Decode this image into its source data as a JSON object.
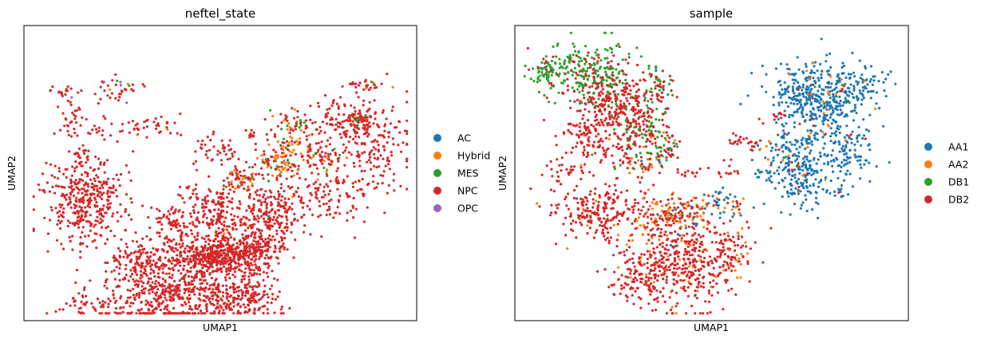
{
  "figure": {
    "background": "#ffffff"
  },
  "chart_data": [
    {
      "type": "scatter",
      "title": "neftel_state",
      "xlabel": "UMAP1",
      "ylabel": "UMAP2",
      "grid": false,
      "ticks": false,
      "legend_position": "right",
      "series": [
        {
          "name": "AC",
          "color": "#1f77b4"
        },
        {
          "name": "Hybrid",
          "color": "#ff7f0e"
        },
        {
          "name": "MES",
          "color": "#2ca02c"
        },
        {
          "name": "NPC",
          "color": "#d62728"
        },
        {
          "name": "OPC",
          "color": "#9467bd"
        }
      ],
      "clusters": [
        {
          "cx": 0.5,
          "cy": 0.78,
          "sx": 0.045,
          "sy": 0.025,
          "n": 280,
          "mix": [
            0,
            0,
            0,
            1,
            0
          ]
        },
        {
          "cx": 0.6,
          "cy": 0.72,
          "sx": 0.04,
          "sy": 0.04,
          "n": 160,
          "mix": [
            0,
            0.05,
            0,
            0.95,
            0
          ]
        },
        {
          "cx": 0.63,
          "cy": 0.62,
          "sx": 0.04,
          "sy": 0.04,
          "n": 140,
          "mix": [
            0,
            0.05,
            0,
            0.9,
            0.05
          ]
        },
        {
          "cx": 0.5,
          "cy": 0.65,
          "sx": 0.008,
          "sy": 0.05,
          "n": 40,
          "mix": [
            0,
            0,
            0,
            1,
            0
          ]
        },
        {
          "cx": 0.55,
          "cy": 0.52,
          "sx": 0.02,
          "sy": 0.03,
          "n": 70,
          "mix": [
            0,
            0.25,
            0.05,
            0.7,
            0
          ]
        },
        {
          "cx": 0.65,
          "cy": 0.47,
          "sx": 0.025,
          "sy": 0.03,
          "n": 90,
          "mix": [
            0,
            0.4,
            0.1,
            0.45,
            0.05
          ]
        },
        {
          "cx": 0.68,
          "cy": 0.4,
          "sx": 0.03,
          "sy": 0.02,
          "n": 40,
          "mix": [
            0,
            0.3,
            0.1,
            0.6,
            0
          ]
        },
        {
          "cx": 0.69,
          "cy": 0.33,
          "sx": 0.03,
          "sy": 0.02,
          "n": 40,
          "mix": [
            0,
            0.2,
            0.2,
            0.6,
            0
          ]
        },
        {
          "cx": 0.76,
          "cy": 0.45,
          "sx": 0.025,
          "sy": 0.03,
          "n": 50,
          "mix": [
            0,
            0.15,
            0.15,
            0.7,
            0
          ]
        },
        {
          "cx": 0.86,
          "cy": 0.32,
          "sx": 0.014,
          "sy": 0.014,
          "n": 35,
          "mix": [
            0,
            0.05,
            0.1,
            0.85,
            0
          ]
        },
        {
          "cx": 0.86,
          "cy": 0.2,
          "sx": 0.03,
          "sy": 0.01,
          "n": 25,
          "mix": [
            0,
            0.1,
            0.1,
            0.8,
            0
          ]
        },
        {
          "cx": 0.58,
          "cy": 0.37,
          "sx": 0.01,
          "sy": 0.01,
          "n": 10,
          "mix": [
            0,
            0,
            0,
            1,
            0
          ]
        },
        {
          "cx": 0.52,
          "cy": 0.42,
          "sx": 0.01,
          "sy": 0.02,
          "n": 12,
          "mix": [
            0,
            0,
            0,
            1,
            0
          ]
        },
        {
          "cx": 0.12,
          "cy": 0.32,
          "sx": 0.02,
          "sy": 0.03,
          "n": 30,
          "mix": [
            0,
            0,
            0,
            1,
            0
          ]
        },
        {
          "cx": 0.22,
          "cy": 0.35,
          "sx": 0.03,
          "sy": 0.025,
          "n": 20,
          "mix": [
            0,
            0,
            0,
            1,
            0
          ]
        },
        {
          "cx": 0.1,
          "cy": 0.22,
          "sx": 0.02,
          "sy": 0.01,
          "n": 15,
          "mix": [
            0,
            0,
            0,
            1,
            0
          ]
        },
        {
          "cx": 0.23,
          "cy": 0.22,
          "sx": 0.04,
          "sy": 0.02,
          "n": 40,
          "mix": [
            0,
            0.05,
            0.05,
            0.8,
            0.1
          ]
        },
        {
          "cx": 0.32,
          "cy": 0.34,
          "sx": 0.05,
          "sy": 0.02,
          "n": 35,
          "mix": [
            0,
            0.05,
            0,
            0.9,
            0.05
          ]
        },
        {
          "cx": 0.15,
          "cy": 0.45,
          "sx": 0.02,
          "sy": 0.03,
          "n": 25,
          "mix": [
            0,
            0,
            0,
            1,
            0
          ]
        },
        {
          "cx": 0.48,
          "cy": 0.42,
          "sx": 0.03,
          "sy": 0.03,
          "n": 30,
          "mix": [
            0,
            0,
            0,
            1,
            0
          ]
        },
        {
          "cx": 0.15,
          "cy": 0.6,
          "sx": 0.05,
          "sy": 0.07,
          "n": 360,
          "mix": [
            0,
            0,
            0,
            1,
            0
          ]
        },
        {
          "cx": 0.45,
          "cy": 0.78,
          "sx": 0.04,
          "sy": 0.05,
          "n": 130,
          "mix": [
            0,
            0,
            0,
            1,
            0
          ]
        },
        {
          "cx": 0.38,
          "cy": 0.92,
          "sx": 0.09,
          "sy": 0.06,
          "n": 420,
          "mix": [
            0,
            0,
            0,
            1,
            0
          ]
        },
        {
          "cx": 0.32,
          "cy": 0.8,
          "sx": 0.06,
          "sy": 0.05,
          "n": 220,
          "mix": [
            0,
            0,
            0,
            1,
            0
          ]
        },
        {
          "cx": 0.48,
          "cy": 0.62,
          "sx": 0.05,
          "sy": 0.06,
          "n": 160,
          "mix": [
            0,
            0,
            0,
            1,
            0
          ]
        },
        {
          "cx": 0.38,
          "cy": 0.67,
          "sx": 0.03,
          "sy": 0.03,
          "n": 60,
          "mix": [
            0,
            0,
            0,
            1,
            0
          ]
        },
        {
          "cx": 0.58,
          "cy": 0.8,
          "sx": 0.03,
          "sy": 0.06,
          "n": 120,
          "mix": [
            0,
            0,
            0,
            1,
            0
          ]
        },
        {
          "cx": 0.55,
          "cy": 0.93,
          "sx": 0.05,
          "sy": 0.03,
          "n": 150,
          "mix": [
            0,
            0,
            0,
            1,
            0
          ]
        },
        {
          "cx": 0.77,
          "cy": 0.58,
          "sx": 0.06,
          "sy": 0.06,
          "n": 130,
          "mix": [
            0,
            0,
            0,
            1,
            0
          ]
        },
        {
          "cx": 0.82,
          "cy": 0.33,
          "sx": 0.06,
          "sy": 0.05,
          "n": 160,
          "mix": [
            0,
            0,
            0,
            1,
            0
          ]
        },
        {
          "cx": 0.9,
          "cy": 0.42,
          "sx": 0.05,
          "sy": 0.06,
          "n": 120,
          "mix": [
            0,
            0,
            0,
            1,
            0
          ]
        },
        {
          "cx": 0.18,
          "cy": 0.95,
          "sx": 0.05,
          "sy": 0.03,
          "n": 60,
          "mix": [
            0,
            0,
            0,
            1,
            0
          ]
        }
      ]
    },
    {
      "type": "scatter",
      "title": "sample",
      "xlabel": "UMAP1",
      "ylabel": "UMAP2",
      "grid": false,
      "ticks": false,
      "legend_position": "right",
      "series": [
        {
          "name": "AA1",
          "color": "#1f77b4"
        },
        {
          "name": "AA2",
          "color": "#ff7f0e"
        },
        {
          "name": "DB1",
          "color": "#2ca02c"
        },
        {
          "name": "DB2",
          "color": "#d62728"
        }
      ],
      "clusters": [
        {
          "cx": 0.18,
          "cy": 0.16,
          "sx": 0.06,
          "sy": 0.05,
          "n": 240,
          "mix": [
            0,
            0,
            0.8,
            0.2
          ]
        },
        {
          "cx": 0.08,
          "cy": 0.16,
          "sx": 0.02,
          "sy": 0.02,
          "n": 50,
          "mix": [
            0,
            0,
            0.9,
            0.1
          ]
        },
        {
          "cx": 0.25,
          "cy": 0.27,
          "sx": 0.05,
          "sy": 0.07,
          "n": 330,
          "mix": [
            0,
            0,
            0.05,
            0.95
          ]
        },
        {
          "cx": 0.33,
          "cy": 0.35,
          "sx": 0.03,
          "sy": 0.04,
          "n": 90,
          "mix": [
            0,
            0,
            0.3,
            0.7
          ]
        },
        {
          "cx": 0.36,
          "cy": 0.22,
          "sx": 0.02,
          "sy": 0.04,
          "n": 60,
          "mix": [
            0.05,
            0,
            0.5,
            0.45
          ]
        },
        {
          "cx": 0.38,
          "cy": 0.42,
          "sx": 0.02,
          "sy": 0.03,
          "n": 50,
          "mix": [
            0.05,
            0.1,
            0.5,
            0.35
          ]
        },
        {
          "cx": 0.16,
          "cy": 0.36,
          "sx": 0.03,
          "sy": 0.02,
          "n": 40,
          "mix": [
            0,
            0,
            0,
            1
          ]
        },
        {
          "cx": 0.2,
          "cy": 0.41,
          "sx": 0.03,
          "sy": 0.03,
          "n": 45,
          "mix": [
            0,
            0.05,
            0.05,
            0.9
          ]
        },
        {
          "cx": 0.31,
          "cy": 0.46,
          "sx": 0.03,
          "sy": 0.03,
          "n": 60,
          "mix": [
            0.05,
            0.1,
            0.15,
            0.7
          ]
        },
        {
          "cx": 0.12,
          "cy": 0.5,
          "sx": 0.03,
          "sy": 0.03,
          "n": 30,
          "mix": [
            0,
            0,
            0,
            1
          ]
        },
        {
          "cx": 0.44,
          "cy": 0.5,
          "sx": 0.02,
          "sy": 0.01,
          "n": 12,
          "mix": [
            0,
            0,
            0,
            1
          ]
        },
        {
          "cx": 0.22,
          "cy": 0.63,
          "sx": 0.06,
          "sy": 0.05,
          "n": 230,
          "mix": [
            0,
            0.05,
            0,
            0.95
          ]
        },
        {
          "cx": 0.42,
          "cy": 0.8,
          "sx": 0.08,
          "sy": 0.08,
          "n": 460,
          "mix": [
            0,
            0.1,
            0,
            0.9
          ]
        },
        {
          "cx": 0.4,
          "cy": 0.65,
          "sx": 0.05,
          "sy": 0.04,
          "n": 130,
          "mix": [
            0.1,
            0.4,
            0,
            0.5
          ]
        },
        {
          "cx": 0.52,
          "cy": 0.61,
          "sx": 0.04,
          "sy": 0.03,
          "n": 60,
          "mix": [
            0.5,
            0.3,
            0,
            0.2
          ]
        },
        {
          "cx": 0.32,
          "cy": 0.87,
          "sx": 0.04,
          "sy": 0.04,
          "n": 80,
          "mix": [
            0,
            0,
            0,
            1
          ]
        },
        {
          "cx": 0.55,
          "cy": 0.77,
          "sx": 0.025,
          "sy": 0.05,
          "n": 60,
          "mix": [
            0,
            0.2,
            0,
            0.8
          ]
        },
        {
          "cx": 0.66,
          "cy": 0.31,
          "sx": 0.02,
          "sy": 0.02,
          "n": 10,
          "mix": [
            0,
            0,
            0,
            1
          ]
        },
        {
          "cx": 0.55,
          "cy": 0.48,
          "sx": 0.02,
          "sy": 0.02,
          "n": 12,
          "mix": [
            0,
            0,
            0,
            1
          ]
        },
        {
          "cx": 0.58,
          "cy": 0.4,
          "sx": 0.02,
          "sy": 0.02,
          "n": 12,
          "mix": [
            0,
            0,
            0.2,
            0.8
          ]
        },
        {
          "cx": 0.7,
          "cy": 0.46,
          "sx": 0.02,
          "sy": 0.02,
          "n": 10,
          "mix": [
            0,
            0,
            0.2,
            0.8
          ]
        },
        {
          "cx": 0.77,
          "cy": 0.25,
          "sx": 0.06,
          "sy": 0.06,
          "n": 430,
          "mix": [
            0.9,
            0.06,
            0.02,
            0.02
          ]
        },
        {
          "cx": 0.72,
          "cy": 0.5,
          "sx": 0.05,
          "sy": 0.06,
          "n": 210,
          "mix": [
            0.95,
            0.03,
            0,
            0.02
          ]
        },
        {
          "cx": 0.85,
          "cy": 0.42,
          "sx": 0.04,
          "sy": 0.05,
          "n": 100,
          "mix": [
            0.95,
            0.03,
            0,
            0.02
          ]
        },
        {
          "cx": 0.88,
          "cy": 0.2,
          "sx": 0.04,
          "sy": 0.03,
          "n": 60,
          "mix": [
            0.95,
            0.03,
            0,
            0.02
          ]
        },
        {
          "cx": 0.7,
          "cy": 0.4,
          "sx": 0.04,
          "sy": 0.02,
          "n": 40,
          "mix": [
            0.7,
            0.2,
            0.1,
            0
          ]
        },
        {
          "cx": 0.64,
          "cy": 0.5,
          "sx": 0.02,
          "sy": 0.01,
          "n": 12,
          "mix": [
            0.8,
            0,
            0.2,
            0
          ]
        },
        {
          "cx": 0.83,
          "cy": 0.57,
          "sx": 0.01,
          "sy": 0.01,
          "n": 10,
          "mix": [
            0.8,
            0,
            0,
            0.2
          ]
        },
        {
          "cx": 0.61,
          "cy": 0.4,
          "sx": 0.01,
          "sy": 0.01,
          "n": 8,
          "mix": [
            0,
            0,
            0,
            1
          ]
        },
        {
          "cx": 0.56,
          "cy": 0.38,
          "sx": 0.01,
          "sy": 0.01,
          "n": 6,
          "mix": [
            0,
            0,
            0,
            1
          ]
        }
      ]
    }
  ]
}
